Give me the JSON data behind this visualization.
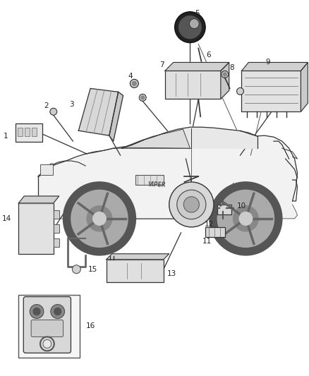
{
  "bg_color": "#ffffff",
  "fig_width": 4.38,
  "fig_height": 5.33,
  "dpi": 100,
  "car": {
    "body_color": "#f5f5f5",
    "line_color": "#333333"
  }
}
